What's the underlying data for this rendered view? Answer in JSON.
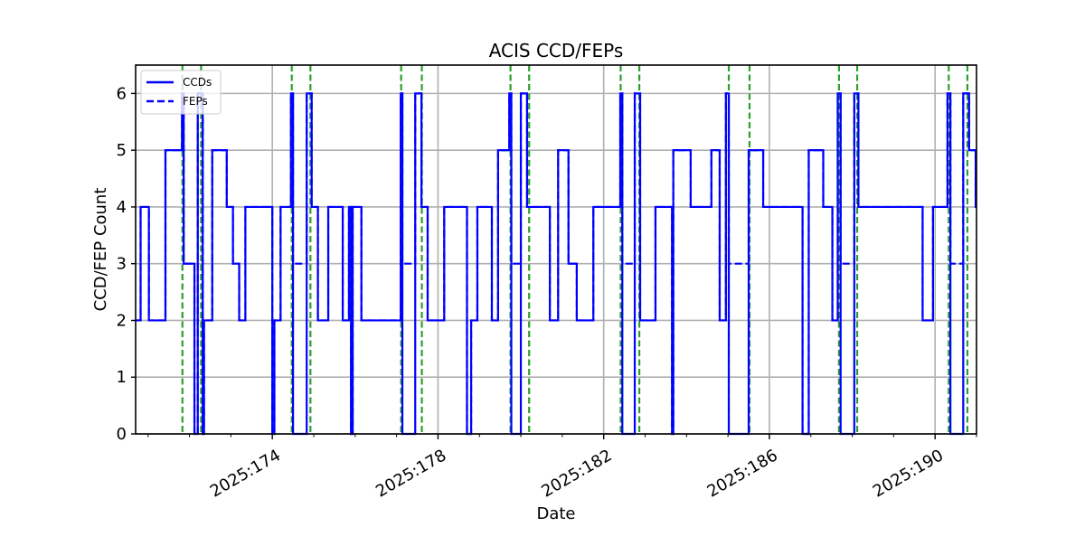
{
  "colors": {
    "ccds": "#0000ff",
    "feps": "#0000ff",
    "event_lines": "#2ca02c",
    "grid": "#b0b0b0"
  },
  "chart_data": {
    "type": "line",
    "title": "ACIS CCD/FEPs",
    "xlabel": "Date",
    "ylabel": "CCD/FEP Count",
    "x_units": "day of year 2025",
    "xlim": [
      2025.1707,
      2025.191
    ],
    "xlim_doy": [
      170.7,
      191.0
    ],
    "ylim": [
      0,
      6.5
    ],
    "grid": true,
    "legend_placement": "top-left",
    "x_ticks": [
      {
        "doy": 174,
        "label": "2025:174"
      },
      {
        "doy": 178,
        "label": "2025:178"
      },
      {
        "doy": 182,
        "label": "2025:182"
      },
      {
        "doy": 186,
        "label": "2025:186"
      },
      {
        "doy": 190,
        "label": "2025:190"
      }
    ],
    "x_minor_ticks_doy": [
      171,
      172,
      173,
      175,
      176,
      177,
      179,
      180,
      181,
      183,
      184,
      185,
      187,
      188,
      189,
      191
    ],
    "y_ticks": [
      {
        "value": 0,
        "label": "0"
      },
      {
        "value": 1,
        "label": "1"
      },
      {
        "value": 2,
        "label": "2"
      },
      {
        "value": 3,
        "label": "3"
      },
      {
        "value": 4,
        "label": "4"
      },
      {
        "value": 5,
        "label": "5"
      },
      {
        "value": 6,
        "label": "6"
      }
    ],
    "event_lines_doy": [
      171.83,
      172.28,
      174.47,
      174.92,
      177.11,
      177.61,
      179.75,
      180.2,
      182.41,
      182.86,
      185.02,
      185.52,
      187.68,
      188.12,
      190.33,
      190.78
    ],
    "series": [
      {
        "name": "CCDs",
        "linestyle": "solid",
        "steps": [
          [
            170.7,
            2
          ],
          [
            170.82,
            4
          ],
          [
            171.02,
            2
          ],
          [
            171.42,
            5
          ],
          [
            171.82,
            6
          ],
          [
            171.86,
            3
          ],
          [
            172.12,
            0
          ],
          [
            172.2,
            6
          ],
          [
            172.32,
            0
          ],
          [
            172.35,
            2
          ],
          [
            172.55,
            5
          ],
          [
            172.9,
            4
          ],
          [
            173.05,
            3
          ],
          [
            173.2,
            2
          ],
          [
            173.35,
            4
          ],
          [
            174.0,
            0
          ],
          [
            174.05,
            2
          ],
          [
            174.2,
            4
          ],
          [
            174.45,
            6
          ],
          [
            174.5,
            0
          ],
          [
            174.83,
            6
          ],
          [
            174.95,
            4
          ],
          [
            175.1,
            2
          ],
          [
            175.35,
            4
          ],
          [
            175.7,
            2
          ],
          [
            175.85,
            4
          ],
          [
            175.9,
            0
          ],
          [
            175.94,
            4
          ],
          [
            176.15,
            2
          ],
          [
            177.1,
            6
          ],
          [
            177.14,
            0
          ],
          [
            177.45,
            6
          ],
          [
            177.6,
            4
          ],
          [
            177.75,
            2
          ],
          [
            178.15,
            4
          ],
          [
            178.7,
            0
          ],
          [
            178.8,
            2
          ],
          [
            178.95,
            4
          ],
          [
            179.3,
            2
          ],
          [
            179.45,
            5
          ],
          [
            179.72,
            6
          ],
          [
            179.77,
            0
          ],
          [
            180.0,
            6
          ],
          [
            180.15,
            4
          ],
          [
            180.7,
            2
          ],
          [
            180.9,
            5
          ],
          [
            181.15,
            3
          ],
          [
            181.35,
            2
          ],
          [
            181.75,
            4
          ],
          [
            182.4,
            6
          ],
          [
            182.45,
            0
          ],
          [
            182.75,
            6
          ],
          [
            182.88,
            2
          ],
          [
            183.25,
            4
          ],
          [
            183.65,
            0
          ],
          [
            183.68,
            5
          ],
          [
            184.1,
            4
          ],
          [
            184.6,
            5
          ],
          [
            184.8,
            2
          ],
          [
            184.95,
            6
          ],
          [
            185.02,
            0
          ],
          [
            185.5,
            5
          ],
          [
            185.85,
            4
          ],
          [
            186.8,
            0
          ],
          [
            186.95,
            5
          ],
          [
            187.3,
            4
          ],
          [
            187.52,
            2
          ],
          [
            187.65,
            6
          ],
          [
            187.72,
            0
          ],
          [
            188.05,
            6
          ],
          [
            188.15,
            4
          ],
          [
            189.7,
            2
          ],
          [
            189.95,
            4
          ],
          [
            190.3,
            6
          ],
          [
            190.37,
            0
          ],
          [
            190.68,
            6
          ],
          [
            190.82,
            5
          ],
          [
            190.98,
            4
          ]
        ]
      },
      {
        "name": "FEPs",
        "linestyle": "dashed",
        "steps": [
          [
            170.7,
            2
          ],
          [
            170.82,
            4
          ],
          [
            171.02,
            2
          ],
          [
            171.42,
            5
          ],
          [
            171.82,
            6
          ],
          [
            171.86,
            3
          ],
          [
            172.12,
            0
          ],
          [
            172.2,
            6
          ],
          [
            172.32,
            0
          ],
          [
            172.35,
            2
          ],
          [
            172.55,
            5
          ],
          [
            172.9,
            4
          ],
          [
            173.05,
            3
          ],
          [
            173.2,
            2
          ],
          [
            173.35,
            4
          ],
          [
            174.0,
            0
          ],
          [
            174.05,
            2
          ],
          [
            174.2,
            4
          ],
          [
            174.45,
            6
          ],
          [
            174.5,
            3
          ],
          [
            174.83,
            6
          ],
          [
            174.95,
            4
          ],
          [
            175.1,
            2
          ],
          [
            175.35,
            4
          ],
          [
            175.7,
            2
          ],
          [
            175.85,
            4
          ],
          [
            175.9,
            0
          ],
          [
            175.94,
            4
          ],
          [
            176.15,
            2
          ],
          [
            177.1,
            6
          ],
          [
            177.14,
            3
          ],
          [
            177.45,
            6
          ],
          [
            177.6,
            4
          ],
          [
            177.75,
            2
          ],
          [
            178.15,
            4
          ],
          [
            178.7,
            0
          ],
          [
            178.8,
            2
          ],
          [
            178.95,
            4
          ],
          [
            179.3,
            2
          ],
          [
            179.45,
            5
          ],
          [
            179.72,
            6
          ],
          [
            179.77,
            3
          ],
          [
            180.0,
            6
          ],
          [
            180.15,
            4
          ],
          [
            180.7,
            2
          ],
          [
            180.9,
            5
          ],
          [
            181.15,
            3
          ],
          [
            181.35,
            2
          ],
          [
            181.75,
            4
          ],
          [
            182.4,
            6
          ],
          [
            182.45,
            3
          ],
          [
            182.75,
            6
          ],
          [
            182.88,
            2
          ],
          [
            183.25,
            4
          ],
          [
            183.65,
            0
          ],
          [
            183.68,
            5
          ],
          [
            184.1,
            4
          ],
          [
            184.6,
            5
          ],
          [
            184.8,
            2
          ],
          [
            184.95,
            6
          ],
          [
            185.02,
            3
          ],
          [
            185.5,
            5
          ],
          [
            185.85,
            4
          ],
          [
            186.8,
            0
          ],
          [
            186.95,
            5
          ],
          [
            187.3,
            4
          ],
          [
            187.52,
            2
          ],
          [
            187.65,
            6
          ],
          [
            187.72,
            3
          ],
          [
            188.05,
            6
          ],
          [
            188.15,
            4
          ],
          [
            189.7,
            2
          ],
          [
            189.95,
            4
          ],
          [
            190.3,
            6
          ],
          [
            190.37,
            3
          ],
          [
            190.68,
            6
          ],
          [
            190.82,
            5
          ],
          [
            190.98,
            4
          ]
        ]
      }
    ]
  }
}
